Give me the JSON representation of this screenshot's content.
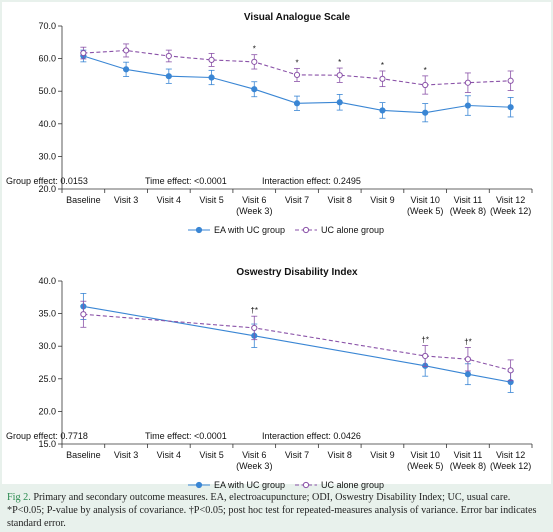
{
  "chart_data": [
    {
      "type": "line",
      "title": "Visual Analogue Scale",
      "categories": [
        "Baseline",
        "Visit 3",
        "Visit 4",
        "Visit 5",
        "Visit 6|(Week 3)",
        "Visit 7",
        "Visit 8",
        "Visit 9",
        "Visit 10|(Week 5)",
        "Visit 11|(Week 8)",
        "Visit 12|(Week 12)"
      ],
      "ylim": [
        20,
        70
      ],
      "yticks": [
        "70.0",
        "60.0",
        "50.0",
        "40.0",
        "30.0",
        "20.0"
      ],
      "grid": false,
      "legend": "bottom",
      "series": [
        {
          "name": "EA with UC group",
          "style": "solid",
          "color": "#3a86d4",
          "values": [
            60.8,
            56.7,
            54.6,
            54.2,
            50.6,
            46.3,
            46.6,
            44.1,
            43.4,
            45.6,
            45.1
          ],
          "err": [
            1.8,
            2.2,
            2.2,
            2.2,
            2.3,
            2.2,
            2.4,
            2.4,
            2.8,
            3.0,
            3.0
          ]
        },
        {
          "name": "UC alone group",
          "style": "dashed",
          "color": "#8a52a8",
          "values": [
            61.7,
            62.5,
            60.8,
            59.6,
            59.0,
            55.0,
            54.9,
            53.8,
            51.9,
            52.6,
            53.2
          ],
          "err": [
            1.8,
            2.0,
            1.8,
            2.0,
            2.2,
            2.0,
            2.2,
            2.4,
            2.8,
            3.0,
            3.0
          ]
        }
      ],
      "markers": [
        "",
        "",
        "",
        "",
        "*",
        "*",
        "*",
        "*",
        "*",
        "",
        ""
      ],
      "stats": {
        "group": "Group effect: 0.0153",
        "time": "Time effect: <0.0001",
        "interaction": "Interaction effect: 0.2495"
      }
    },
    {
      "type": "line",
      "title": "Oswestry Disability Index",
      "categories": [
        "Baseline",
        "Visit 3",
        "Visit 4",
        "Visit 5",
        "Visit 6|(Week 3)",
        "Visit 7",
        "Visit 8",
        "Visit 9",
        "Visit 10|(Week 5)",
        "Visit 11|(Week 8)",
        "Visit 12|(Week 12)"
      ],
      "ylim": [
        15,
        40
      ],
      "yticks": [
        "40.0",
        "35.0",
        "30.0",
        "25.0",
        "20.0",
        "15.0"
      ],
      "grid": false,
      "legend": "bottom",
      "series": [
        {
          "name": "EA with UC group",
          "style": "solid",
          "color": "#3a86d4",
          "points": [
            [
              0,
              36.1
            ],
            [
              4,
              31.6
            ],
            [
              8,
              27.0
            ],
            [
              9,
              25.7
            ],
            [
              10,
              24.5
            ]
          ],
          "err": [
            2.0,
            1.8,
            1.6,
            1.6,
            1.6
          ]
        },
        {
          "name": "UC alone group",
          "style": "dashed",
          "color": "#8a52a8",
          "points": [
            [
              0,
              34.9
            ],
            [
              4,
              32.8
            ],
            [
              8,
              28.5
            ],
            [
              9,
              28.0
            ],
            [
              10,
              26.3
            ]
          ],
          "err": [
            2.0,
            1.8,
            1.6,
            1.8,
            1.6
          ]
        }
      ],
      "markers": [
        "",
        "",
        "",
        "",
        "†*",
        "",
        "",
        "",
        "†*",
        "†*",
        ""
      ],
      "stats": {
        "group": "Group effect: 0.7718",
        "time": "Time effect: <0.0001",
        "interaction": "Interaction effect: 0.0426"
      }
    }
  ],
  "caption": {
    "lead": "Fig 2.",
    "text": " Primary and secondary outcome measures. EA, electroacupuncture; ODI, Oswestry Disability Index; UC, usual care. *P<0.05; P-value by analysis of covariance. †P<0.05; post hoc test for repeated-measures analysis of variance. Error bar indicates standard error."
  }
}
